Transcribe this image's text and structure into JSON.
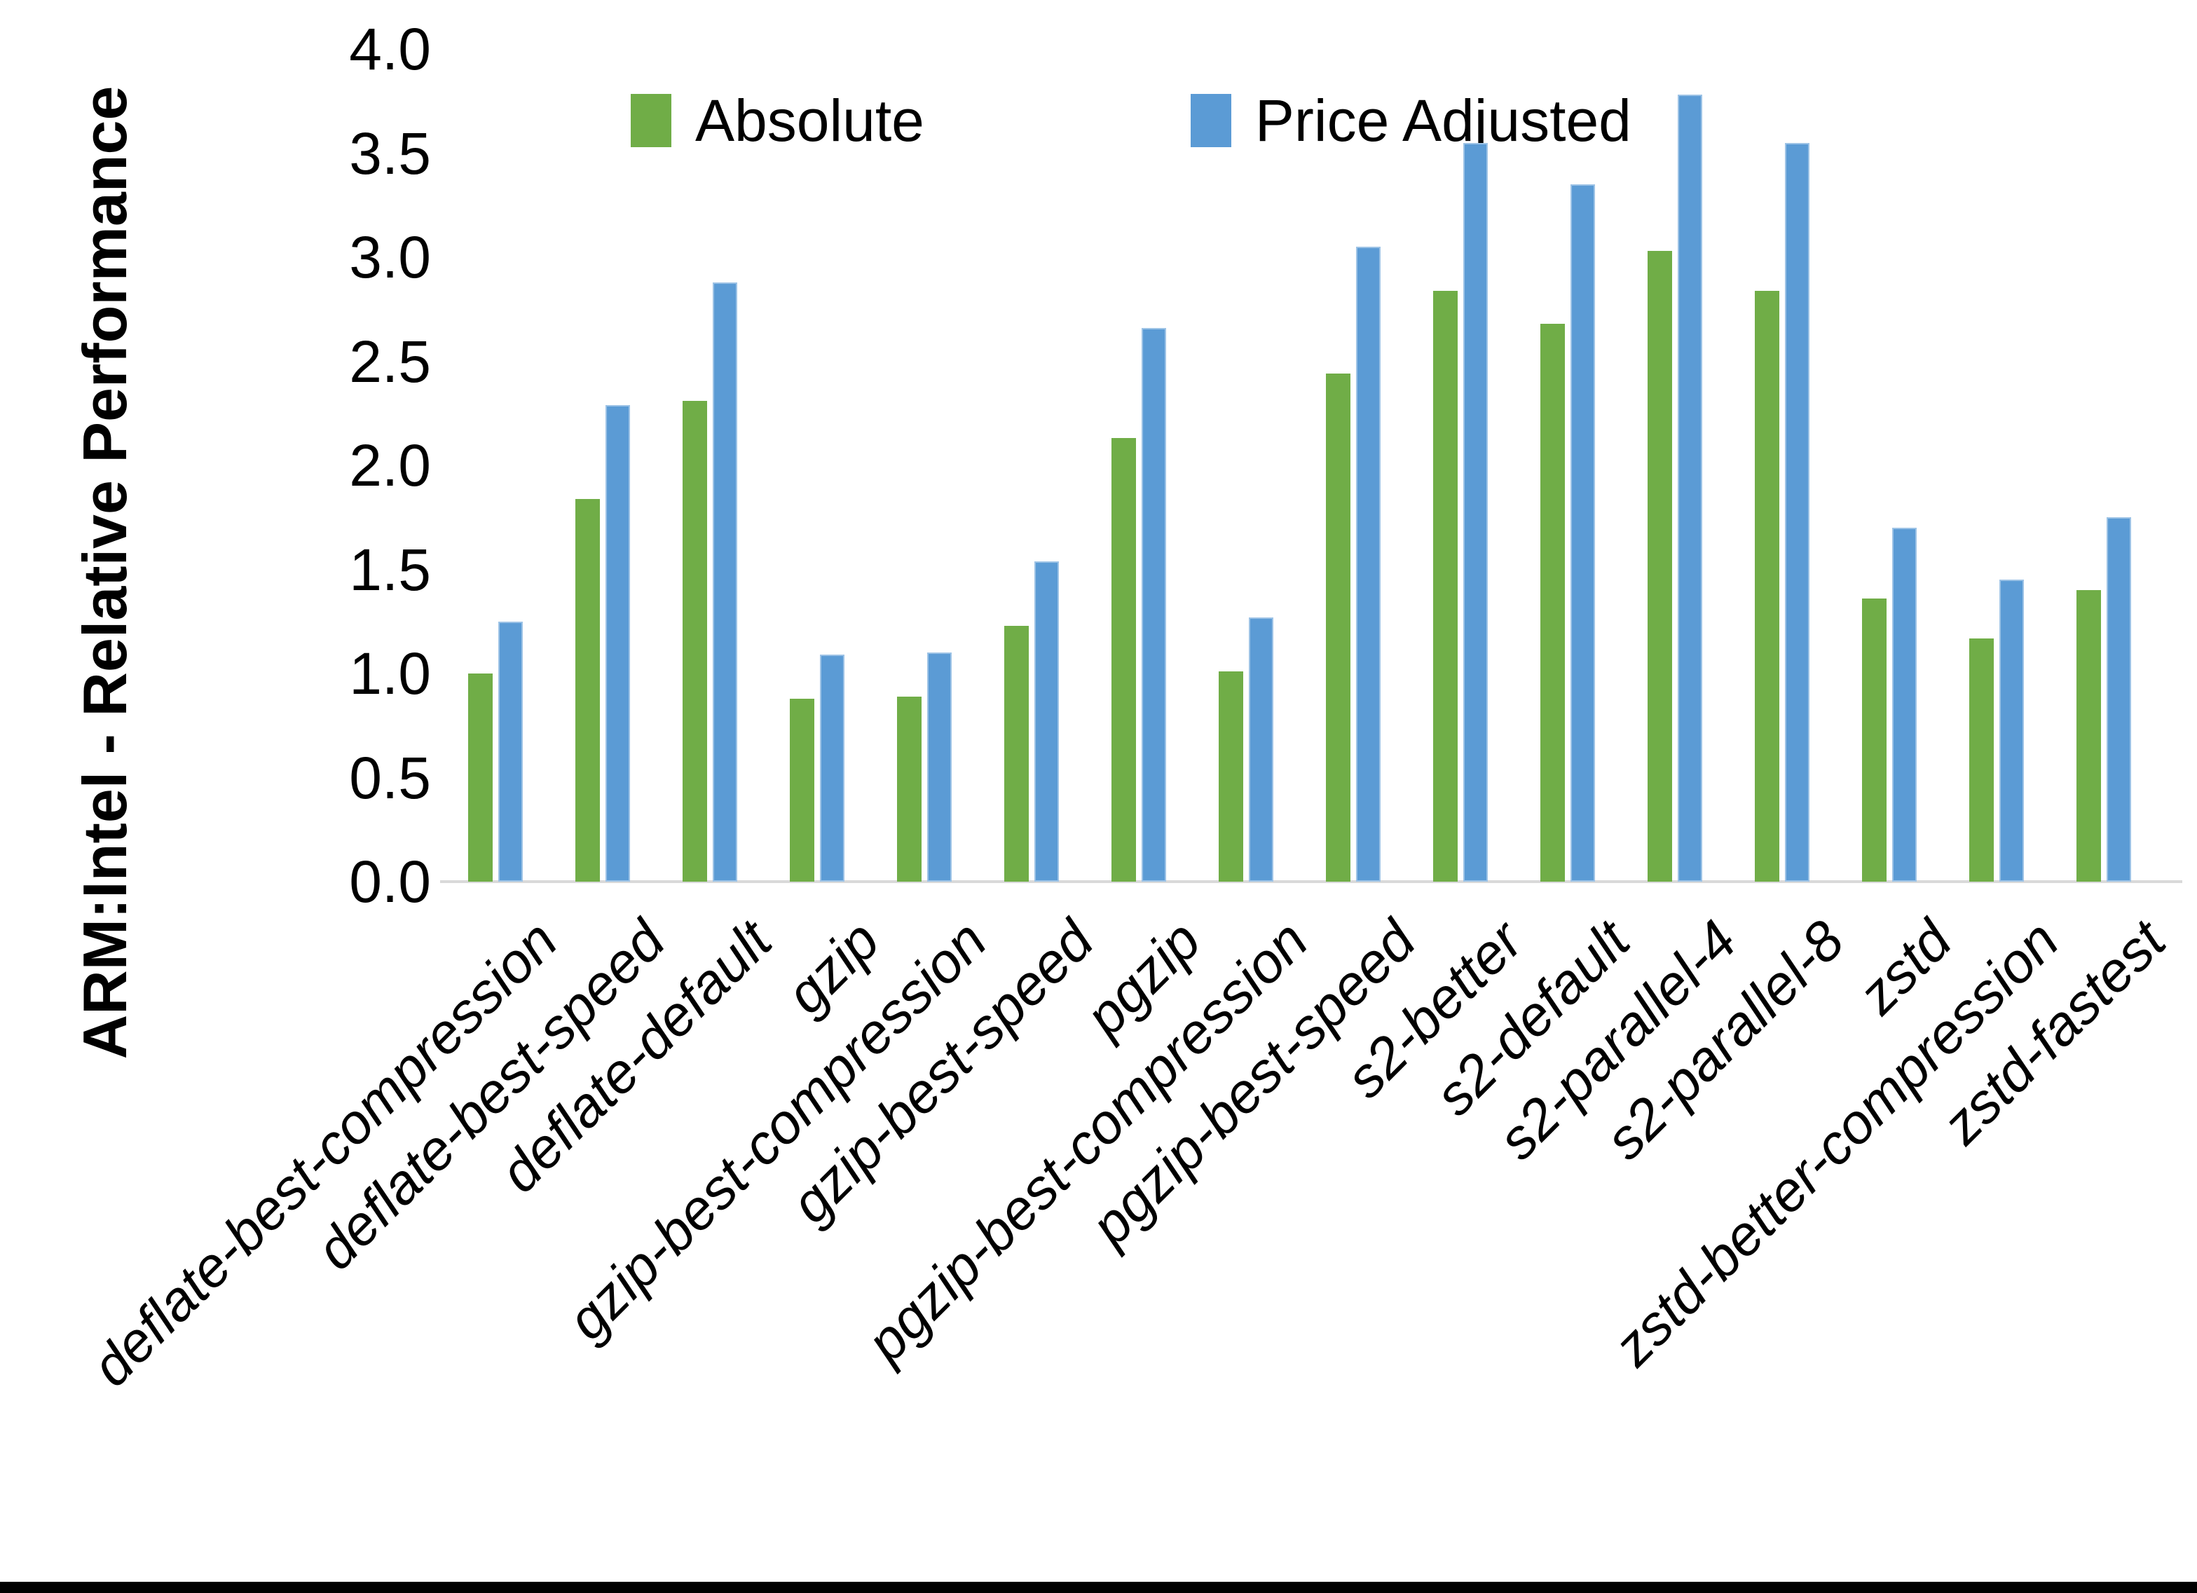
{
  "chart_data": {
    "type": "bar",
    "title": "",
    "xlabel": "",
    "ylabel": "ARM:Intel - Relative Performance",
    "ylim": [
      0.0,
      4.0
    ],
    "ytick_step": 0.5,
    "yticks": [
      "4.0",
      "3.5",
      "3.0",
      "2.5",
      "2.0",
      "1.5",
      "1.0",
      "0.5",
      "0.0"
    ],
    "grid": false,
    "legend_position": "top-center",
    "axis_line_color": "#d9d9d9",
    "categories": [
      "deflate-best-compression",
      "deflate-best-speed",
      "deflate-default",
      "gzip",
      "gzip-best-compression",
      "gzip-best-speed",
      "pgzip",
      "pgzip-best-compression",
      "pgzip-best-speed",
      "s2-better",
      "s2-default",
      "s2-parallel-4",
      "s2-parallel-8",
      "zstd",
      "zstd-better-compression",
      "zstd-fastest"
    ],
    "series": [
      {
        "name": "Absolute",
        "color": "#70ad47",
        "values": [
          1.0,
          1.84,
          2.31,
          0.88,
          0.89,
          1.23,
          2.13,
          1.01,
          2.44,
          2.84,
          2.68,
          3.03,
          2.84,
          1.36,
          1.17,
          1.4
        ]
      },
      {
        "name": "Price Adjusted",
        "color": "#5b9bd5",
        "values": [
          1.25,
          2.29,
          2.88,
          1.09,
          1.1,
          1.54,
          2.66,
          1.27,
          3.05,
          3.55,
          3.35,
          3.78,
          3.55,
          1.7,
          1.45,
          1.75
        ]
      }
    ]
  }
}
